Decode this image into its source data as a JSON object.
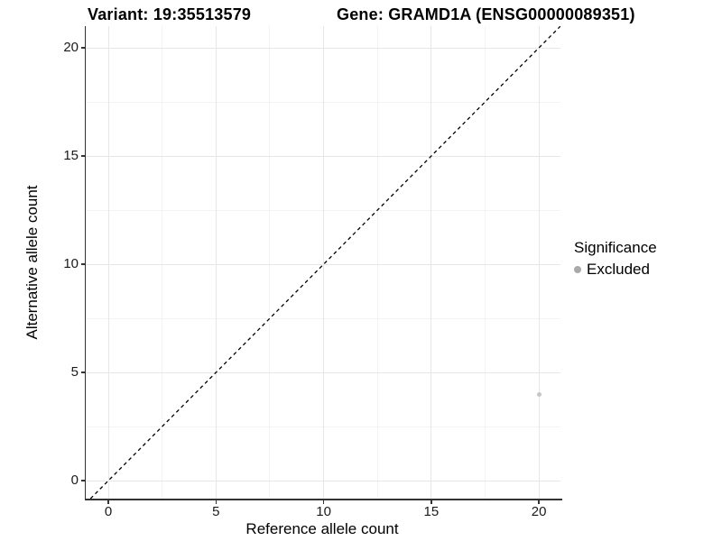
{
  "titles": {
    "variant": "Variant: 19:35513579",
    "gene": "Gene: GRAMD1A (ENSG00000089351)"
  },
  "legend": {
    "title": "Significance",
    "items": [
      {
        "label": "Excluded",
        "key_color": "#a9a9a9"
      }
    ]
  },
  "colors": {
    "background": "#ffffff",
    "axis_line": "#333333",
    "tick_text": "#1a1a1a",
    "grid_major": "#e7e7e7",
    "grid_minor": "#f4f4f4",
    "reference_line": "#000000",
    "excluded_point": "#c6c6c6"
  },
  "chart_data": {
    "type": "scatter",
    "title": "Variant: 19:35513579 / Gene: GRAMD1A (ENSG00000089351)",
    "xlabel": "Reference allele count",
    "ylabel": "Alternative allele count",
    "xlim": [
      -1.05,
      21
    ],
    "ylim": [
      -0.83,
      21
    ],
    "x_ticks": [
      0,
      5,
      10,
      15,
      20
    ],
    "y_ticks": [
      0,
      5,
      10,
      15,
      20
    ],
    "x_minor_ticks": [
      2.5,
      7.5,
      12.5,
      17.5
    ],
    "y_minor_ticks": [
      2.5,
      7.5,
      12.5,
      17.5
    ],
    "grid": "major+minor, light gray on white",
    "legend_position": "right",
    "reference_line": {
      "type": "identity y=x",
      "style": "dashed",
      "color": "#000000"
    },
    "series": [
      {
        "name": "Excluded",
        "color": "#c6c6c6",
        "points": [
          {
            "x": 20,
            "y": 4
          }
        ]
      }
    ]
  }
}
